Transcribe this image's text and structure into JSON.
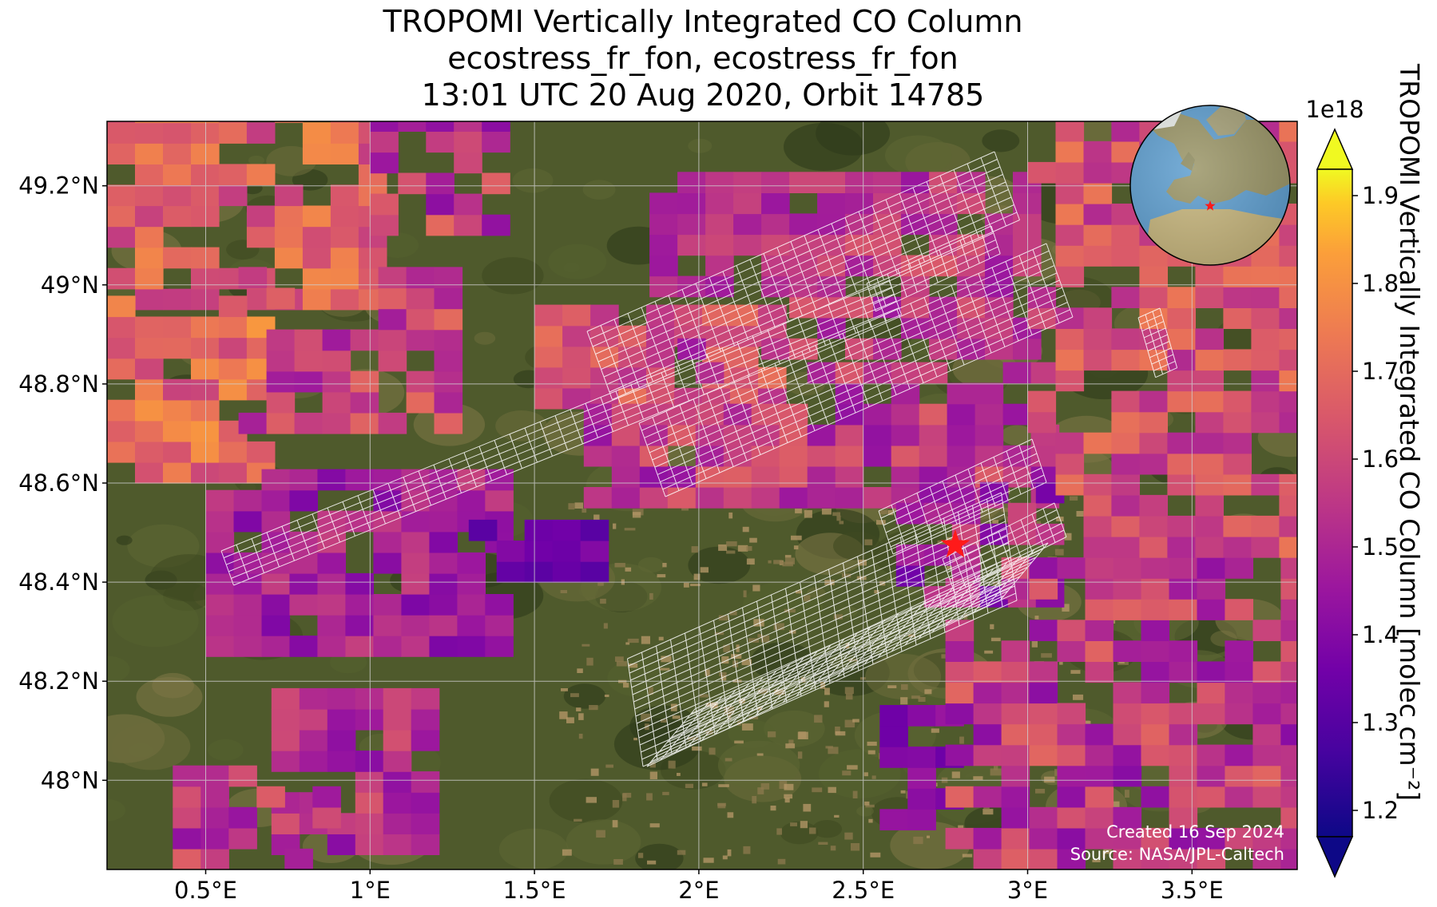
{
  "title": {
    "line1": "TROPOMI Vertically Integrated CO Column",
    "line2": "ecostress_fr_fon, ecostress_fr_fon",
    "line3": "13:01 UTC 20 Aug 2020, Orbit 14785"
  },
  "chart_data": {
    "type": "heatmap",
    "map_extent": {
      "lon": [
        0.2,
        3.82
      ],
      "lat": [
        47.82,
        49.33
      ]
    },
    "lon_ticks": [
      {
        "value": 0.5,
        "label": "0.5°E"
      },
      {
        "value": 1.0,
        "label": "1°E"
      },
      {
        "value": 1.5,
        "label": "1.5°E"
      },
      {
        "value": 2.0,
        "label": "2°E"
      },
      {
        "value": 2.5,
        "label": "2.5°E"
      },
      {
        "value": 3.0,
        "label": "3°E"
      },
      {
        "value": 3.5,
        "label": "3.5°E"
      }
    ],
    "lat_ticks": [
      {
        "value": 48.0,
        "label": "48°N"
      },
      {
        "value": 48.2,
        "label": "48.2°N"
      },
      {
        "value": 48.4,
        "label": "48.4°N"
      },
      {
        "value": 48.6,
        "label": "48.6°N"
      },
      {
        "value": 48.8,
        "label": "48.8°N"
      },
      {
        "value": 49.0,
        "label": "49°N"
      },
      {
        "value": 49.2,
        "label": "49.2°N"
      }
    ],
    "grid": true,
    "colorbar": {
      "label": "TROPOMI Vertically Integrated CO Column [molec cm⁻²]",
      "multiplier": "1e18",
      "min": 1.17,
      "max": 1.93,
      "colormap": "plasma",
      "extend": "both",
      "ticks": [
        {
          "value": 1.2,
          "label": "1.2"
        },
        {
          "value": 1.3,
          "label": "1.3"
        },
        {
          "value": 1.4,
          "label": "1.4"
        },
        {
          "value": 1.5,
          "label": "1.5"
        },
        {
          "value": 1.6,
          "label": "1.6"
        },
        {
          "value": 1.7,
          "label": "1.7"
        },
        {
          "value": 1.8,
          "label": "1.8"
        },
        {
          "value": 1.9,
          "label": "1.9"
        }
      ]
    },
    "site_marker": {
      "lon": 2.78,
      "lat": 48.475,
      "color": "#ff1a1a"
    },
    "inset_globe": {
      "center_lon": 2.8,
      "center_lat": 48.5
    }
  },
  "credits": {
    "created": "Created 16 Sep 2024",
    "source": "Source: NASA/JPL-Caltech"
  },
  "colors": {
    "grid": "#d0d0d0",
    "footprint": "#ffffff",
    "marker": "#ff1a1a"
  }
}
